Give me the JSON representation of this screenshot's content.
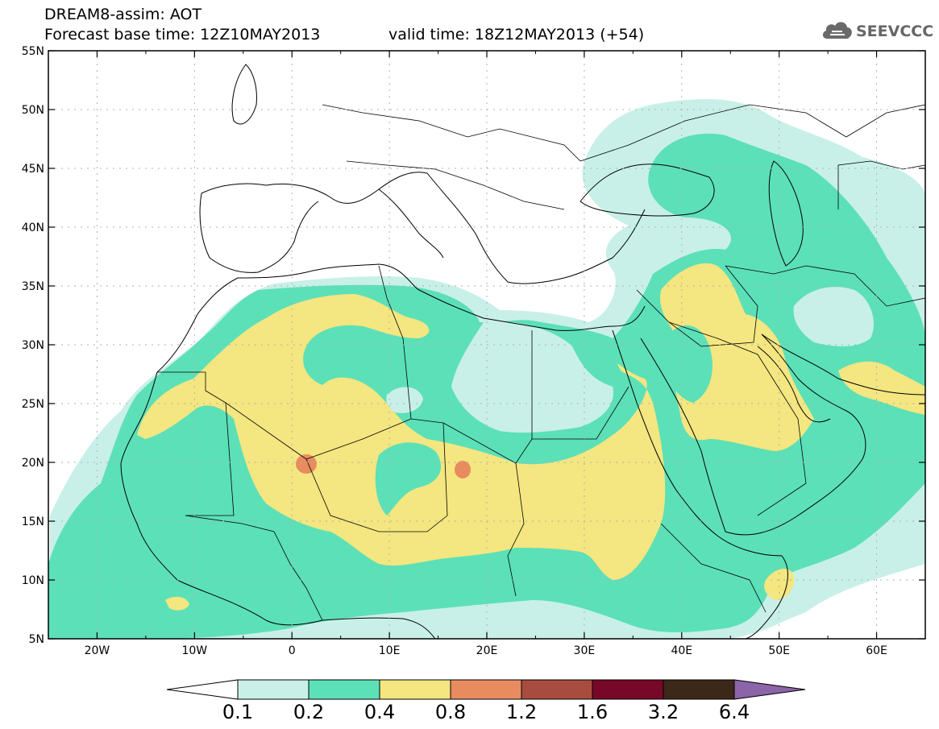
{
  "header": {
    "line1": "DREAM8-assim: AOT",
    "line2": "Forecast base time: 12Z10MAY2013",
    "valid_time": "valid time: 18Z12MAY2013 (+54)"
  },
  "logo": {
    "text": "SEEVCCC",
    "icon": "cloud-icon"
  },
  "map": {
    "lon_ticks": [
      "20W",
      "10W",
      "0",
      "10E",
      "20E",
      "30E",
      "40E",
      "50E",
      "60E"
    ],
    "lat_ticks": [
      "55N",
      "50N",
      "45N",
      "40N",
      "35N",
      "30N",
      "25N",
      "20N",
      "15N",
      "10N",
      "5N"
    ],
    "lon_range": [
      -25,
      65
    ],
    "lat_range": [
      5,
      55
    ]
  },
  "colorbar": {
    "labels": [
      "0.1",
      "0.2",
      "0.4",
      "0.8",
      "1.2",
      "1.6",
      "3.2",
      "6.4"
    ],
    "colors": [
      "#c8f0e8",
      "#5ce0b8",
      "#f4e680",
      "#e88c60",
      "#a84c40",
      "#780828",
      "#3c2818",
      "#8c64a8"
    ]
  }
}
